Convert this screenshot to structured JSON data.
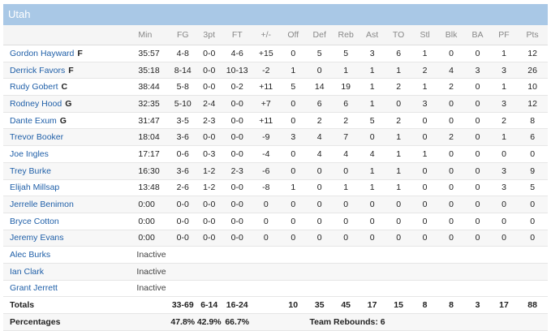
{
  "team": "Utah",
  "columns": [
    "Min",
    "FG",
    "3pt",
    "FT",
    "+/-",
    "Off",
    "Def",
    "Reb",
    "Ast",
    "TO",
    "Stl",
    "Blk",
    "BA",
    "PF",
    "Pts"
  ],
  "players": [
    {
      "name": "Gordon Hayward",
      "pos": "F",
      "stats": [
        "35:57",
        "4-8",
        "0-0",
        "4-6",
        "+15",
        "0",
        "5",
        "5",
        "3",
        "6",
        "1",
        "0",
        "0",
        "1",
        "12"
      ]
    },
    {
      "name": "Derrick Favors",
      "pos": "F",
      "stats": [
        "35:18",
        "8-14",
        "0-0",
        "10-13",
        "-2",
        "1",
        "0",
        "1",
        "1",
        "1",
        "2",
        "4",
        "3",
        "3",
        "26"
      ]
    },
    {
      "name": "Rudy Gobert",
      "pos": "C",
      "stats": [
        "38:44",
        "5-8",
        "0-0",
        "0-2",
        "+11",
        "5",
        "14",
        "19",
        "1",
        "2",
        "1",
        "2",
        "0",
        "1",
        "10"
      ]
    },
    {
      "name": "Rodney Hood",
      "pos": "G",
      "stats": [
        "32:35",
        "5-10",
        "2-4",
        "0-0",
        "+7",
        "0",
        "6",
        "6",
        "1",
        "0",
        "3",
        "0",
        "0",
        "3",
        "12"
      ]
    },
    {
      "name": "Dante Exum",
      "pos": "G",
      "stats": [
        "31:47",
        "3-5",
        "2-3",
        "0-0",
        "+11",
        "0",
        "2",
        "2",
        "5",
        "2",
        "0",
        "0",
        "0",
        "2",
        "8"
      ]
    },
    {
      "name": "Trevor Booker",
      "pos": "",
      "stats": [
        "18:04",
        "3-6",
        "0-0",
        "0-0",
        "-9",
        "3",
        "4",
        "7",
        "0",
        "1",
        "0",
        "2",
        "0",
        "1",
        "6"
      ]
    },
    {
      "name": "Joe Ingles",
      "pos": "",
      "stats": [
        "17:17",
        "0-6",
        "0-3",
        "0-0",
        "-4",
        "0",
        "4",
        "4",
        "4",
        "1",
        "1",
        "0",
        "0",
        "0",
        "0"
      ]
    },
    {
      "name": "Trey Burke",
      "pos": "",
      "stats": [
        "16:30",
        "3-6",
        "1-2",
        "2-3",
        "-6",
        "0",
        "0",
        "0",
        "1",
        "1",
        "0",
        "0",
        "0",
        "3",
        "9"
      ]
    },
    {
      "name": "Elijah Millsap",
      "pos": "",
      "stats": [
        "13:48",
        "2-6",
        "1-2",
        "0-0",
        "-8",
        "1",
        "0",
        "1",
        "1",
        "1",
        "0",
        "0",
        "0",
        "3",
        "5"
      ]
    },
    {
      "name": "Jerrelle Benimon",
      "pos": "",
      "stats": [
        "0:00",
        "0-0",
        "0-0",
        "0-0",
        "0",
        "0",
        "0",
        "0",
        "0",
        "0",
        "0",
        "0",
        "0",
        "0",
        "0"
      ]
    },
    {
      "name": "Bryce Cotton",
      "pos": "",
      "stats": [
        "0:00",
        "0-0",
        "0-0",
        "0-0",
        "0",
        "0",
        "0",
        "0",
        "0",
        "0",
        "0",
        "0",
        "0",
        "0",
        "0"
      ]
    },
    {
      "name": "Jeremy Evans",
      "pos": "",
      "stats": [
        "0:00",
        "0-0",
        "0-0",
        "0-0",
        "0",
        "0",
        "0",
        "0",
        "0",
        "0",
        "0",
        "0",
        "0",
        "0",
        "0"
      ]
    }
  ],
  "inactive": [
    {
      "name": "Alec Burks",
      "status": "Inactive"
    },
    {
      "name": "Ian Clark",
      "status": "Inactive"
    },
    {
      "name": "Grant Jerrett",
      "status": "Inactive"
    }
  ],
  "totals": {
    "label": "Totals",
    "stats": [
      "",
      "33-69",
      "6-14",
      "16-24",
      "",
      "10",
      "35",
      "45",
      "17",
      "15",
      "8",
      "8",
      "3",
      "17",
      "88"
    ]
  },
  "percentages": {
    "label": "Percentages",
    "fg": "47.8%",
    "three": "42.9%",
    "ft": "66.7%",
    "team_rebounds": "Team Rebounds: 6"
  }
}
